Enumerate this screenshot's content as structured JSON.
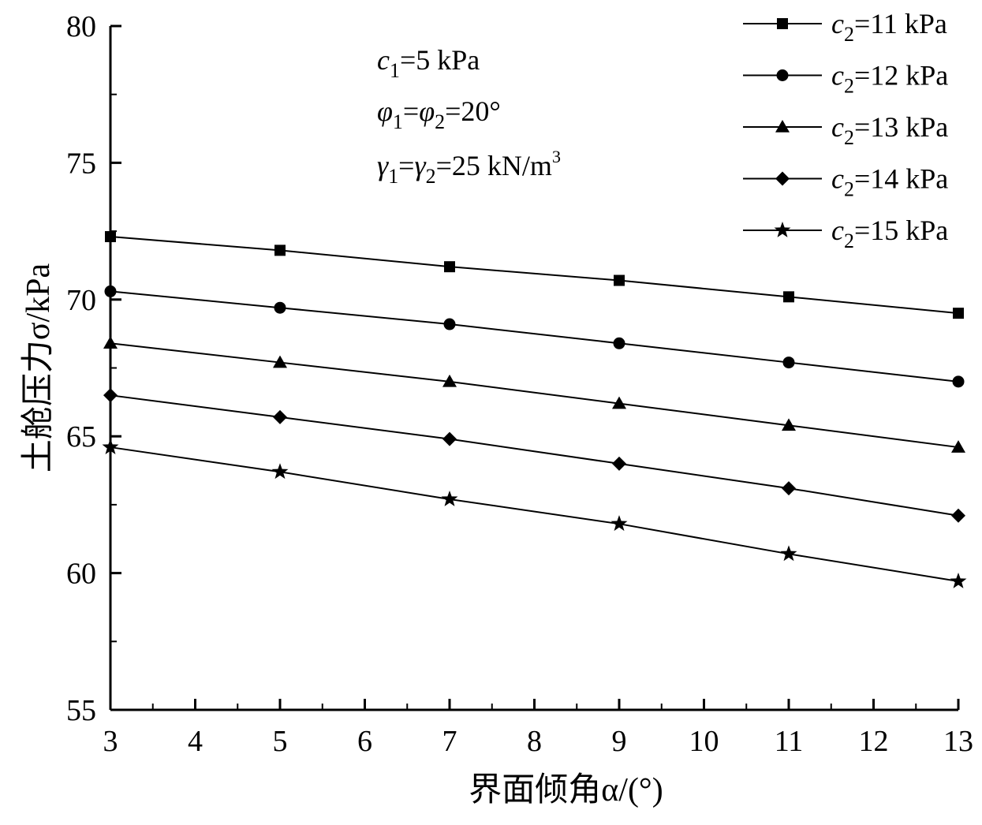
{
  "chart_data": {
    "type": "line",
    "xlabel": "界面倾角α/(°)",
    "ylabel": "土舱压力σ/kPa",
    "xlim": [
      3,
      13
    ],
    "ylim": [
      55,
      80
    ],
    "x_ticks": [
      3,
      4,
      5,
      6,
      7,
      8,
      9,
      10,
      11,
      12,
      13
    ],
    "y_ticks": [
      55,
      60,
      65,
      70,
      75,
      80
    ],
    "x": [
      3,
      5,
      7,
      9,
      11,
      13
    ],
    "series": [
      {
        "name": "c2=11 kPa",
        "marker": "square",
        "values": [
          72.3,
          71.8,
          71.2,
          70.7,
          70.1,
          69.5
        ]
      },
      {
        "name": "c2=12 kPa",
        "marker": "circle",
        "values": [
          70.3,
          69.7,
          69.1,
          68.4,
          67.7,
          67.0
        ]
      },
      {
        "name": "c2=13 kPa",
        "marker": "triangle",
        "values": [
          68.4,
          67.7,
          67.0,
          66.2,
          65.4,
          64.6
        ]
      },
      {
        "name": "c2=14 kPa",
        "marker": "diamond",
        "values": [
          66.5,
          65.7,
          64.9,
          64.0,
          63.1,
          62.1
        ]
      },
      {
        "name": "c2=15 kPa",
        "marker": "star",
        "values": [
          64.6,
          63.7,
          62.7,
          61.8,
          60.7,
          59.7
        ]
      }
    ],
    "annotations": [
      "c1=5 kPa",
      "φ1=φ2=20°",
      "γ1=γ2=25 kN/m3"
    ],
    "legend_position": "top-right",
    "grid": false,
    "colors": {
      "line": "#000000",
      "marker": "#000000"
    }
  }
}
